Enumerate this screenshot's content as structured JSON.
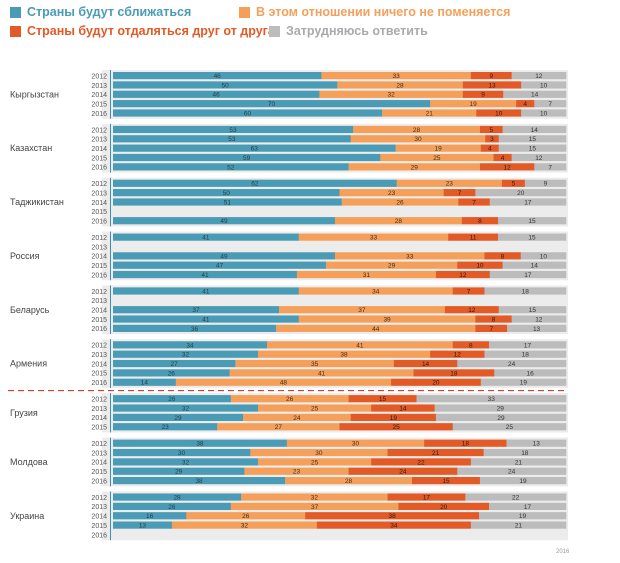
{
  "legend": {
    "converge": "Страны будут сближаться",
    "nochange": "В этом отношении ничего не поменяется",
    "diverge": "Страны будут отдаляться друг от друга",
    "hard": "Затрудняюсь ответить"
  },
  "colors": {
    "converge": "#4a9bb5",
    "nochange": "#f5a05a",
    "diverge": "#e25a26",
    "hard": "#bcbcbc"
  },
  "source": "2016",
  "chart_data": {
    "type": "bar",
    "orientation": "horizontal",
    "stacked": true,
    "unit": "%",
    "series_names": [
      "Страны будут сближаться",
      "В этом отношении ничего не поменяется",
      "Страны будут отдаляться друг от друга",
      "Затрудняюсь ответить"
    ],
    "groups": [
      {
        "country": "Кыргызстан",
        "rows": [
          {
            "year": "2012",
            "values": [
              46,
              33,
              9,
              12
            ]
          },
          {
            "year": "2013",
            "values": [
              50,
              28,
              13,
              10
            ]
          },
          {
            "year": "2014",
            "values": [
              46,
              32,
              9,
              14
            ]
          },
          {
            "year": "2015",
            "values": [
              70,
              19,
              4,
              7
            ]
          },
          {
            "year": "2016",
            "values": [
              60,
              21,
              10,
              10
            ]
          }
        ]
      },
      {
        "country": "Казахстан",
        "rows": [
          {
            "year": "2012",
            "values": [
              53,
              28,
              5,
              14
            ]
          },
          {
            "year": "2013",
            "values": [
              53,
              30,
              3,
              15
            ]
          },
          {
            "year": "2014",
            "values": [
              63,
              19,
              4,
              15
            ]
          },
          {
            "year": "2015",
            "values": [
              59,
              25,
              4,
              12
            ]
          },
          {
            "year": "2016",
            "values": [
              52,
              29,
              12,
              7
            ]
          }
        ]
      },
      {
        "country": "Таджикистан",
        "rows": [
          {
            "year": "2012",
            "values": [
              62,
              23,
              5,
              9
            ]
          },
          {
            "year": "2013",
            "values": [
              50,
              23,
              7,
              20
            ]
          },
          {
            "year": "2014",
            "values": [
              51,
              26,
              7,
              17
            ]
          },
          {
            "year": "2015",
            "values": null
          },
          {
            "year": "2016",
            "values": [
              49,
              28,
              8,
              15
            ]
          }
        ]
      },
      {
        "country": "Россия",
        "rows": [
          {
            "year": "2012",
            "values": [
              41,
              33,
              11,
              15
            ]
          },
          {
            "year": "2013",
            "values": null
          },
          {
            "year": "2014",
            "values": [
              49,
              33,
              8,
              10
            ]
          },
          {
            "year": "2015",
            "values": [
              47,
              29,
              10,
              14
            ]
          },
          {
            "year": "2016",
            "values": [
              41,
              31,
              12,
              17
            ]
          }
        ]
      },
      {
        "country": "Беларусь",
        "rows": [
          {
            "year": "2012",
            "values": [
              41,
              34,
              7,
              18
            ]
          },
          {
            "year": "2013",
            "values": null
          },
          {
            "year": "2014",
            "values": [
              37,
              37,
              12,
              15
            ]
          },
          {
            "year": "2015",
            "values": [
              41,
              39,
              8,
              12
            ]
          },
          {
            "year": "2016",
            "values": [
              36,
              44,
              7,
              13
            ]
          }
        ]
      },
      {
        "country": "Армения",
        "rows": [
          {
            "year": "2012",
            "values": [
              34,
              41,
              8,
              17
            ]
          },
          {
            "year": "2013",
            "values": [
              32,
              38,
              12,
              18
            ]
          },
          {
            "year": "2014",
            "values": [
              27,
              35,
              14,
              24
            ]
          },
          {
            "year": "2015",
            "values": [
              26,
              41,
              18,
              16
            ]
          },
          {
            "year": "2016",
            "values": [
              14,
              48,
              20,
              19
            ]
          }
        ]
      },
      {
        "country": "Грузия",
        "rows": [
          {
            "year": "2012",
            "values": [
              26,
              26,
              15,
              33
            ]
          },
          {
            "year": "2013",
            "values": [
              32,
              25,
              14,
              29
            ]
          },
          {
            "year": "2014",
            "values": [
              29,
              24,
              19,
              29
            ]
          },
          {
            "year": "2015",
            "values": [
              23,
              27,
              25,
              25
            ]
          }
        ]
      },
      {
        "country": "Молдова",
        "rows": [
          {
            "year": "2012",
            "values": [
              38,
              30,
              18,
              13
            ]
          },
          {
            "year": "2013",
            "values": [
              30,
              30,
              21,
              18
            ]
          },
          {
            "year": "2014",
            "values": [
              32,
              25,
              22,
              21
            ]
          },
          {
            "year": "2015",
            "values": [
              29,
              23,
              24,
              24
            ]
          },
          {
            "year": "2016",
            "values": [
              38,
              28,
              15,
              19
            ]
          }
        ]
      },
      {
        "country": "Украина",
        "rows": [
          {
            "year": "2012",
            "values": [
              28,
              32,
              17,
              22
            ]
          },
          {
            "year": "2013",
            "values": [
              26,
              37,
              20,
              17
            ]
          },
          {
            "year": "2014",
            "values": [
              16,
              26,
              38,
              19
            ]
          },
          {
            "year": "2015",
            "values": [
              13,
              32,
              34,
              21
            ]
          },
          {
            "year": "2016",
            "values": null
          }
        ]
      }
    ]
  }
}
